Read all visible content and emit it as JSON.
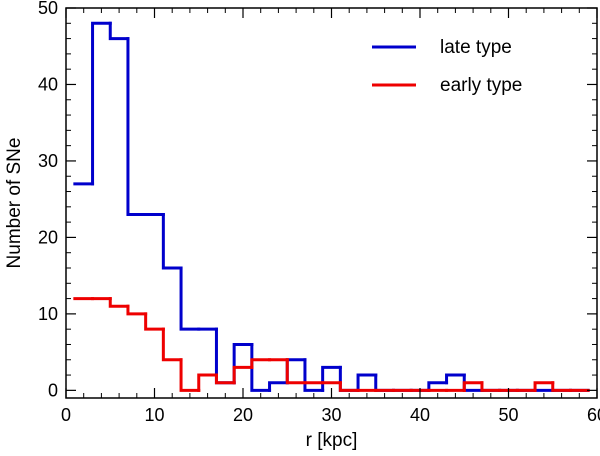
{
  "chart_data": {
    "type": "histogram",
    "title": "",
    "xlabel": "r [kpc]",
    "ylabel": "Number of SNe",
    "xlim": [
      0,
      60
    ],
    "ylim": [
      -1,
      50
    ],
    "xticks": [
      0,
      10,
      20,
      30,
      40,
      50,
      60
    ],
    "yticks": [
      0,
      10,
      20,
      30,
      40,
      50
    ],
    "bin_width": 2,
    "bin_starts": [
      1,
      3,
      5,
      7,
      9,
      11,
      13,
      15,
      17,
      19,
      21,
      23,
      25,
      27,
      29,
      31,
      33,
      35,
      37,
      39,
      41,
      43,
      45,
      47,
      49,
      51,
      53,
      55,
      57
    ],
    "series": [
      {
        "name": "late type",
        "color": "#0000cc",
        "values": [
          27,
          48,
          46,
          23,
          23,
          16,
          8,
          8,
          1,
          6,
          0,
          1,
          4,
          0,
          3,
          0,
          2,
          0,
          0,
          0,
          1,
          2,
          0,
          0,
          0,
          0,
          0,
          0,
          0
        ]
      },
      {
        "name": "early type",
        "color": "#ee0000",
        "values": [
          12,
          12,
          11,
          10,
          8,
          4,
          0,
          2,
          1,
          3,
          4,
          4,
          1,
          1,
          1,
          0,
          0,
          0,
          0,
          0,
          0,
          0,
          1,
          0,
          0,
          0,
          1,
          0,
          0
        ]
      }
    ],
    "legend_position": "top-right"
  }
}
